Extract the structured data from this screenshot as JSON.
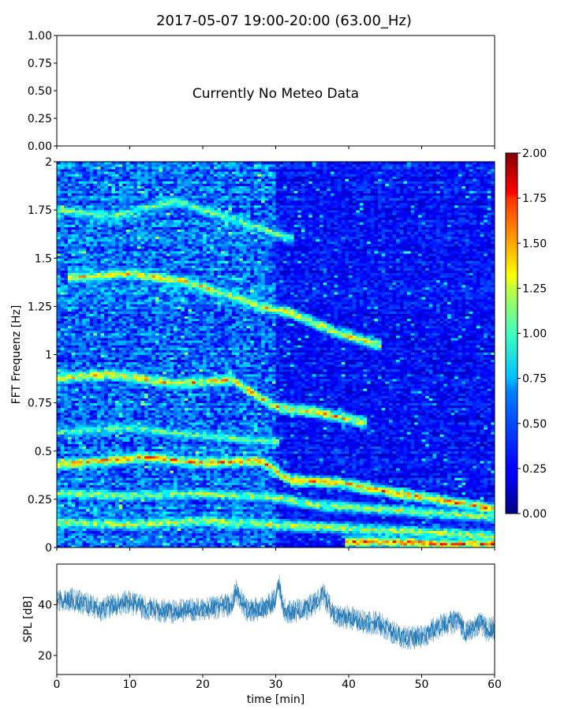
{
  "title": "2017-05-07 19:00-20:00 (63.00_Hz)",
  "chart_data": [
    {
      "type": "line",
      "panel": "meteo",
      "message": "Currently No Meteo Data",
      "ylim": [
        0,
        1
      ],
      "yticks": [
        "0.00",
        "0.25",
        "0.50",
        "0.75",
        "1.00"
      ],
      "xlim": [
        0,
        60
      ],
      "series": []
    },
    {
      "type": "heatmap",
      "panel": "spectrogram",
      "xlabel": "",
      "ylabel": "FFT Frequenz [Hz]",
      "xlim": [
        0,
        60
      ],
      "ylim": [
        0,
        2
      ],
      "yticks": [
        "0",
        "0.25",
        "0.5",
        "0.75",
        "1",
        "1.25",
        "1.5",
        "1.75",
        "2"
      ],
      "colormap": "jet",
      "colorbar": {
        "range": [
          0,
          2
        ],
        "ticks": [
          "0.00",
          "0.25",
          "0.50",
          "0.75",
          "1.00",
          "1.25",
          "1.50",
          "1.75",
          "2.00"
        ]
      },
      "grid": {
        "time_bins": 120,
        "freq_bins": 160
      },
      "background_level": {
        "t0_30": 0.5,
        "t30_60": 0.3
      },
      "ridges": [
        {
          "t": [
            0,
            12,
            20,
            28,
            32,
            38,
            44,
            52,
            60
          ],
          "f": [
            0.43,
            0.47,
            0.44,
            0.45,
            0.35,
            0.34,
            0.3,
            0.25,
            0.2
          ],
          "level": 1.8
        },
        {
          "t": [
            0,
            8,
            16,
            24,
            30,
            36,
            42
          ],
          "f": [
            0.88,
            0.9,
            0.85,
            0.87,
            0.73,
            0.7,
            0.65
          ],
          "level": 1.7
        },
        {
          "t": [
            2,
            10,
            18,
            28,
            32,
            38,
            44
          ],
          "f": [
            1.4,
            1.42,
            1.38,
            1.25,
            1.22,
            1.12,
            1.05
          ],
          "level": 1.6
        },
        {
          "t": [
            0,
            10,
            20,
            30,
            36,
            44,
            52,
            60
          ],
          "f": [
            0.28,
            0.27,
            0.28,
            0.26,
            0.22,
            0.2,
            0.18,
            0.16
          ],
          "level": 1.4
        },
        {
          "t": [
            0,
            10,
            20,
            30,
            40,
            50,
            60
          ],
          "f": [
            0.13,
            0.12,
            0.14,
            0.12,
            0.1,
            0.08,
            0.06
          ],
          "level": 1.5
        },
        {
          "t": [
            0,
            8,
            16,
            26,
            32
          ],
          "f": [
            1.75,
            1.72,
            1.8,
            1.68,
            1.6
          ],
          "level": 1.3
        },
        {
          "t": [
            40,
            46,
            52,
            60
          ],
          "f": [
            0.03,
            0.03,
            0.02,
            0.02
          ],
          "level": 1.9
        },
        {
          "t": [
            0,
            10,
            20,
            30
          ],
          "f": [
            0.6,
            0.62,
            0.58,
            0.55
          ],
          "level": 1.2
        }
      ]
    },
    {
      "type": "line",
      "panel": "spl",
      "xlabel": "time [min]",
      "ylabel": "SPL [dB]",
      "xlim": [
        0,
        60
      ],
      "ylim": [
        12.5,
        56
      ],
      "xticks": [
        "0",
        "10",
        "20",
        "30",
        "40",
        "50",
        "60"
      ],
      "yticks": [
        "20",
        "40"
      ],
      "color": "#1f77b4",
      "series": [
        {
          "x": [
            0,
            2,
            4,
            6,
            8,
            10,
            12,
            14,
            16,
            18,
            20,
            22,
            24,
            24.5,
            26,
            28,
            30,
            30.5,
            31,
            32,
            34,
            36,
            36.5,
            38,
            40,
            42,
            44,
            46,
            48,
            50,
            52,
            54,
            55,
            56,
            58,
            59,
            60
          ],
          "y": [
            41,
            42,
            40,
            38,
            40,
            41,
            39,
            38,
            37,
            38,
            38,
            39,
            40,
            46,
            38,
            38,
            42,
            48,
            38,
            37,
            38,
            42,
            44,
            36,
            35,
            33,
            33,
            29,
            27,
            27,
            31,
            33,
            34,
            29,
            33,
            30,
            31
          ],
          "spread": 7
        }
      ]
    }
  ]
}
